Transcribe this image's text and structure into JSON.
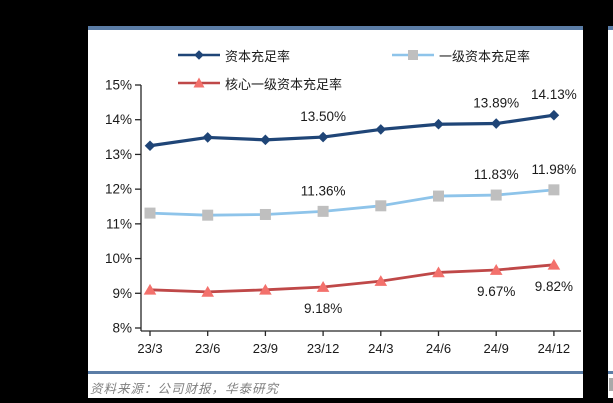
{
  "page": {
    "background_color": "#000000",
    "panel_border_color": "#5b7da6"
  },
  "chart_data": {
    "type": "line",
    "title": "",
    "xlabel": "",
    "ylabel": "",
    "grid": false,
    "legend_position": "top",
    "ylim": [
      8,
      15
    ],
    "y_tick_labels": [
      "15%",
      "14%",
      "13%",
      "12%",
      "11%",
      "10%",
      "9%",
      "8%"
    ],
    "categories": [
      "23/3",
      "23/6",
      "23/9",
      "23/12",
      "24/3",
      "24/6",
      "24/9",
      "24/12"
    ],
    "series": [
      {
        "name": "资本充足率",
        "color": "#1f4577",
        "marker": "diamond",
        "marker_color": "#1f4577",
        "label_position": "above",
        "values": [
          13.25,
          13.49,
          13.42,
          13.5,
          13.72,
          13.87,
          13.89,
          14.13
        ],
        "point_labels": {
          "3": "13.50%",
          "6": "13.89%",
          "7": "14.13%"
        }
      },
      {
        "name": "一级资本充足率",
        "color": "#8ec4ea",
        "marker": "square",
        "marker_color": "#bfbfbf",
        "label_position": "above",
        "values": [
          11.31,
          11.25,
          11.27,
          11.36,
          11.52,
          11.8,
          11.83,
          11.98
        ],
        "point_labels": {
          "3": "11.36%",
          "6": "11.83%",
          "7": "11.98%"
        }
      },
      {
        "name": "核心一级资本充足率",
        "color": "#bf4848",
        "marker": "triangle",
        "marker_color": "#f3716c",
        "label_position": "below",
        "values": [
          9.1,
          9.04,
          9.1,
          9.18,
          9.35,
          9.6,
          9.67,
          9.82
        ],
        "point_labels": {
          "3": "9.18%",
          "6": "9.67%",
          "7": "9.82%"
        }
      }
    ]
  },
  "footer": {
    "source": "资料来源：公司财报，华泰研究"
  }
}
